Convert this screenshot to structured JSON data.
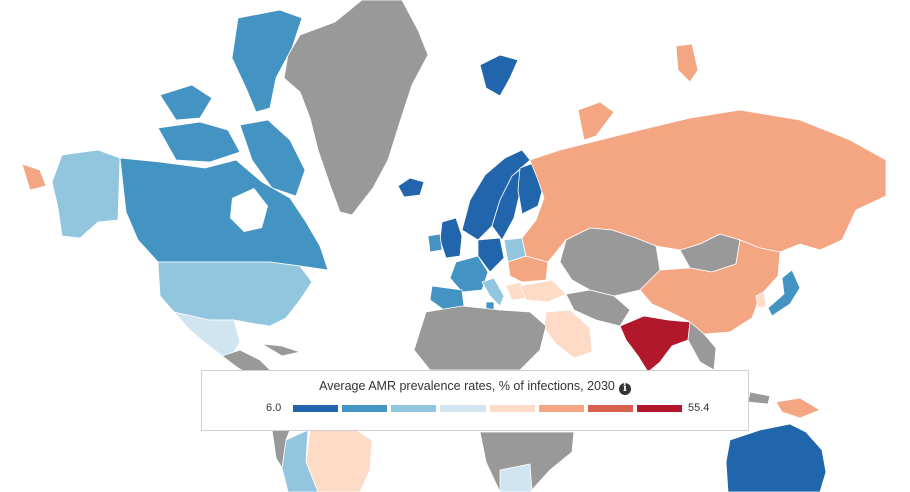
{
  "legend": {
    "title": "Average AMR prevalence rates, % of infections, 2030",
    "min_label": "6.0",
    "max_label": "55.4",
    "info_icon": "info-circle-icon",
    "scale": [
      "#2166ac",
      "#4393c3",
      "#92c5de",
      "#d1e5f0",
      "#fddbc7",
      "#f4a582",
      "#d6604d",
      "#b2182b"
    ],
    "no_data_color": "#999999"
  }
}
